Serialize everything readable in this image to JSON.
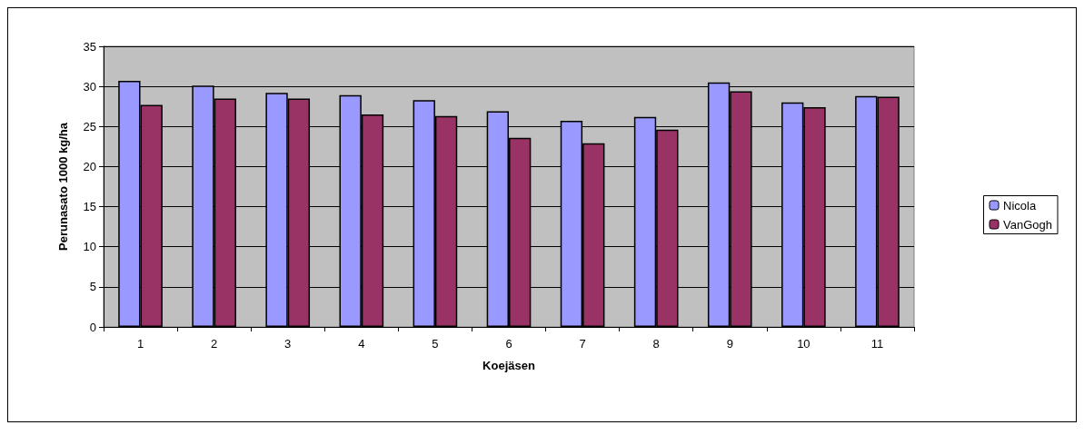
{
  "chart_data": {
    "type": "bar",
    "xlabel": "Koejäsen",
    "ylabel": "Perunasato 1000 kg/ha",
    "categories": [
      "1",
      "2",
      "3",
      "4",
      "5",
      "6",
      "7",
      "8",
      "9",
      "10",
      "11"
    ],
    "series": [
      {
        "name": "Nicola",
        "color": "#9999ff",
        "values": [
          30.7,
          30.1,
          29.2,
          28.9,
          28.3,
          26.9,
          25.7,
          26.2,
          30.5,
          28.0,
          28.8
        ]
      },
      {
        "name": "VanGogh",
        "color": "#993366",
        "values": [
          27.7,
          28.5,
          28.5,
          26.5,
          26.3,
          23.6,
          22.9,
          24.6,
          29.4,
          27.4,
          28.7
        ]
      }
    ],
    "ylim": [
      0,
      35
    ],
    "yticks": [
      0,
      5,
      10,
      15,
      20,
      25,
      30,
      35
    ],
    "grid": "y",
    "legend": "right"
  }
}
